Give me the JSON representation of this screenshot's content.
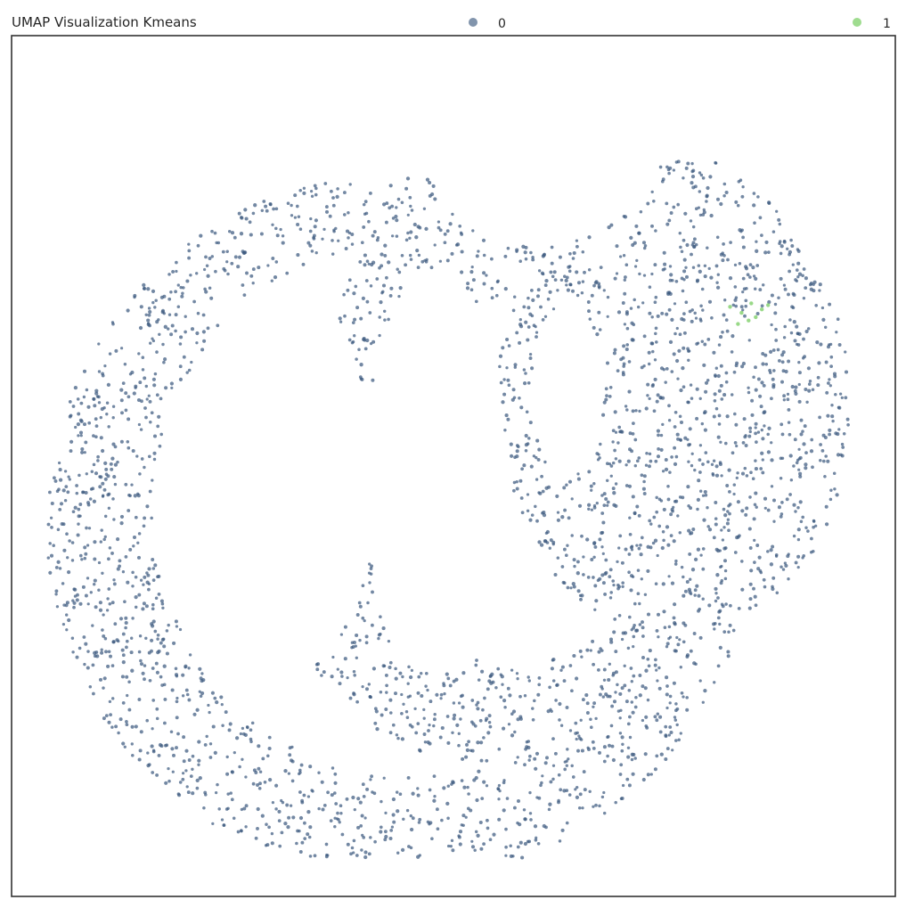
{
  "chart_data": {
    "type": "scatter",
    "title": "UMAP Visualization Kmeans",
    "xlabel": "",
    "ylabel": "",
    "axes_visible": false,
    "grid": false,
    "legend_position": "top",
    "series": [
      {
        "name": "0",
        "color": "#3d5a80"
      },
      {
        "name": "1",
        "color": "#7fd06a"
      }
    ],
    "xlim": [
      0,
      100
    ],
    "ylim": [
      0,
      100
    ],
    "point_count_estimate": {
      "0": 3000,
      "1": 8
    },
    "region_outline_description_in_data_units": [
      {
        "region": "left-arc",
        "center": [
          22,
          30
        ],
        "radii": [
          38,
          42
        ]
      },
      {
        "region": "inner-arc",
        "center": [
          48,
          28
        ],
        "radii": [
          22,
          28
        ]
      },
      {
        "region": "right-lobe",
        "center": [
          70,
          52
        ],
        "radii": [
          14,
          30
        ]
      }
    ],
    "cluster_1_points": [
      [
        81.3,
        68.5
      ],
      [
        82.6,
        67.8
      ],
      [
        83.7,
        68.9
      ],
      [
        84.9,
        68.2
      ],
      [
        85.6,
        68.7
      ],
      [
        82.2,
        66.5
      ],
      [
        83.4,
        66.9
      ],
      [
        84.2,
        67.3
      ]
    ]
  }
}
